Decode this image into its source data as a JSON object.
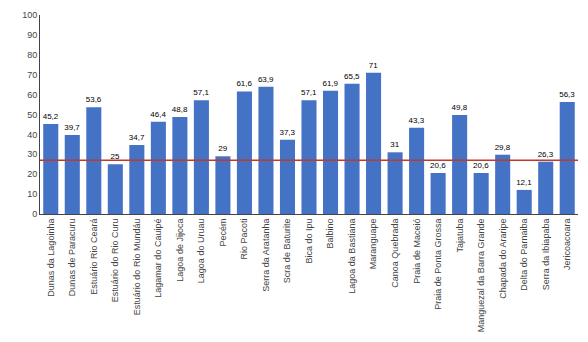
{
  "chart_data": {
    "type": "bar",
    "categories": [
      "Dunas da Lagoinha",
      "Dunas de Paracuru",
      "Estuário Rio Ceará",
      "Estuário do Rio Curu",
      "Estuário do Rio Mundáu",
      "Lagamar do Cauipé",
      "Lagoa de Jijoca",
      "Lagoa do Uruau",
      "Pecém",
      "Rio Pacoti",
      "Serra da Aratanha",
      "Scra de Baturite",
      "Bica do Ipu",
      "Balbino",
      "Lagoa da Bastiana",
      "Maranguape",
      "Canoa Quebrada",
      "Praia de Maceió",
      "Praia de Ponta Grossa",
      "Tajatuba",
      "Manguezal da Barra Grande",
      "Chapada do Araripe",
      "Delta do Parnaiba",
      "Serra da Ibiapaba",
      "Jericoacoara"
    ],
    "values": [
      45.2,
      39.7,
      53.6,
      25.0,
      34.7,
      46.4,
      48.8,
      57.1,
      29.0,
      61.6,
      63.9,
      37.3,
      57.1,
      61.9,
      65.5,
      71.0,
      31.0,
      43.3,
      20.6,
      49.8,
      20.6,
      29.8,
      12.1,
      26.3,
      56.3
    ],
    "value_labels": [
      "45,2",
      "39,7",
      "53,6",
      "25",
      "34,7",
      "46,4",
      "48,8",
      "57,1",
      "29",
      "61,6",
      "63,9",
      "37,3",
      "57,1",
      "61,9",
      "65,5",
      "71",
      "31",
      "43,3",
      "20,6",
      "49,8",
      "20,6",
      "29,8",
      "12,1",
      "26,3",
      "56,3"
    ],
    "data_labels": true,
    "color": "#4472c4",
    "line_y": 27.0,
    "line_color": "#c0392b",
    "ylim": [
      0,
      100
    ],
    "yticks": [
      0,
      10,
      20,
      30,
      40,
      50,
      60,
      70,
      80,
      90,
      100
    ],
    "grid": false
  }
}
